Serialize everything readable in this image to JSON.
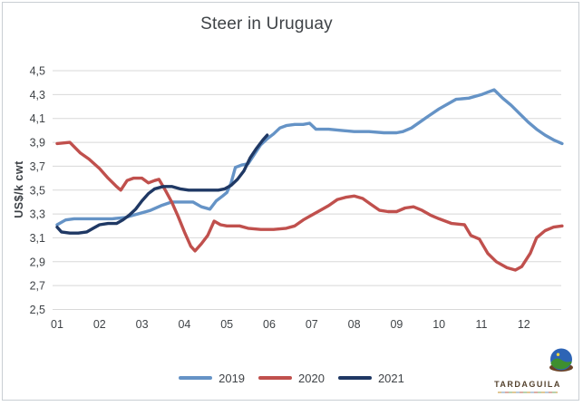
{
  "title": "Steer in Uruguay",
  "logo": {
    "text": "TARDAGUILA"
  },
  "chart_data": {
    "type": "line",
    "title": "Steer in Uruguay",
    "xlabel": "",
    "ylabel": "US$/k cwt",
    "x_unit": "month",
    "x_tick_labels": [
      "01",
      "02",
      "03",
      "04",
      "05",
      "06",
      "07",
      "08",
      "09",
      "10",
      "11",
      "12"
    ],
    "y_tick_labels": [
      "4,5",
      "4,3",
      "4,1",
      "3,9",
      "3,7",
      "3,5",
      "3,3",
      "3,1",
      "2,9",
      "2,7",
      "2,5"
    ],
    "y_tick_values": [
      4.5,
      4.3,
      4.1,
      3.9,
      3.7,
      3.5,
      3.3,
      3.1,
      2.9,
      2.7,
      2.5
    ],
    "ylim": [
      2.5,
      4.5
    ],
    "xlim": [
      1,
      12.9
    ],
    "grid": true,
    "grid_color": "#d8d8d8",
    "legend_position": "bottom",
    "series": [
      {
        "name": "2019",
        "color": "#6593c6",
        "points": [
          [
            1.0,
            3.21
          ],
          [
            1.2,
            3.25
          ],
          [
            1.4,
            3.26
          ],
          [
            1.7,
            3.26
          ],
          [
            2.0,
            3.26
          ],
          [
            2.3,
            3.26
          ],
          [
            2.6,
            3.27
          ],
          [
            2.8,
            3.29
          ],
          [
            3.0,
            3.31
          ],
          [
            3.2,
            3.33
          ],
          [
            3.45,
            3.37
          ],
          [
            3.7,
            3.4
          ],
          [
            4.0,
            3.4
          ],
          [
            4.2,
            3.4
          ],
          [
            4.4,
            3.36
          ],
          [
            4.6,
            3.34
          ],
          [
            4.75,
            3.41
          ],
          [
            4.9,
            3.45
          ],
          [
            5.0,
            3.48
          ],
          [
            5.1,
            3.56
          ],
          [
            5.2,
            3.69
          ],
          [
            5.35,
            3.71
          ],
          [
            5.5,
            3.72
          ],
          [
            5.65,
            3.8
          ],
          [
            5.8,
            3.88
          ],
          [
            5.95,
            3.93
          ],
          [
            6.1,
            3.97
          ],
          [
            6.25,
            4.02
          ],
          [
            6.4,
            4.04
          ],
          [
            6.6,
            4.05
          ],
          [
            6.8,
            4.05
          ],
          [
            6.95,
            4.06
          ],
          [
            7.1,
            4.01
          ],
          [
            7.4,
            4.01
          ],
          [
            7.7,
            4.0
          ],
          [
            8.0,
            3.99
          ],
          [
            8.35,
            3.99
          ],
          [
            8.7,
            3.98
          ],
          [
            9.0,
            3.98
          ],
          [
            9.15,
            3.99
          ],
          [
            9.35,
            4.02
          ],
          [
            9.55,
            4.07
          ],
          [
            9.75,
            4.12
          ],
          [
            10.0,
            4.18
          ],
          [
            10.2,
            4.22
          ],
          [
            10.4,
            4.26
          ],
          [
            10.7,
            4.27
          ],
          [
            11.0,
            4.3
          ],
          [
            11.15,
            4.32
          ],
          [
            11.3,
            4.34
          ],
          [
            11.5,
            4.27
          ],
          [
            11.7,
            4.21
          ],
          [
            11.9,
            4.14
          ],
          [
            12.1,
            4.07
          ],
          [
            12.3,
            4.01
          ],
          [
            12.5,
            3.96
          ],
          [
            12.7,
            3.92
          ],
          [
            12.9,
            3.89
          ]
        ]
      },
      {
        "name": "2020",
        "color": "#c0504d",
        "points": [
          [
            1.0,
            3.89
          ],
          [
            1.3,
            3.9
          ],
          [
            1.55,
            3.81
          ],
          [
            1.75,
            3.76
          ],
          [
            2.0,
            3.68
          ],
          [
            2.2,
            3.6
          ],
          [
            2.4,
            3.53
          ],
          [
            2.5,
            3.5
          ],
          [
            2.65,
            3.58
          ],
          [
            2.8,
            3.6
          ],
          [
            3.0,
            3.6
          ],
          [
            3.15,
            3.56
          ],
          [
            3.3,
            3.58
          ],
          [
            3.4,
            3.59
          ],
          [
            3.55,
            3.5
          ],
          [
            3.7,
            3.4
          ],
          [
            3.85,
            3.28
          ],
          [
            4.0,
            3.15
          ],
          [
            4.15,
            3.03
          ],
          [
            4.25,
            2.99
          ],
          [
            4.4,
            3.05
          ],
          [
            4.55,
            3.12
          ],
          [
            4.7,
            3.24
          ],
          [
            4.85,
            3.21
          ],
          [
            5.0,
            3.2
          ],
          [
            5.3,
            3.2
          ],
          [
            5.5,
            3.18
          ],
          [
            5.8,
            3.17
          ],
          [
            6.1,
            3.17
          ],
          [
            6.4,
            3.18
          ],
          [
            6.6,
            3.2
          ],
          [
            6.8,
            3.25
          ],
          [
            7.0,
            3.29
          ],
          [
            7.2,
            3.33
          ],
          [
            7.4,
            3.37
          ],
          [
            7.6,
            3.42
          ],
          [
            7.8,
            3.44
          ],
          [
            8.0,
            3.45
          ],
          [
            8.2,
            3.43
          ],
          [
            8.4,
            3.38
          ],
          [
            8.6,
            3.33
          ],
          [
            8.8,
            3.32
          ],
          [
            9.0,
            3.32
          ],
          [
            9.2,
            3.35
          ],
          [
            9.4,
            3.36
          ],
          [
            9.6,
            3.33
          ],
          [
            9.8,
            3.29
          ],
          [
            10.0,
            3.26
          ],
          [
            10.3,
            3.22
          ],
          [
            10.6,
            3.21
          ],
          [
            10.75,
            3.12
          ],
          [
            10.95,
            3.09
          ],
          [
            11.15,
            2.97
          ],
          [
            11.35,
            2.9
          ],
          [
            11.6,
            2.85
          ],
          [
            11.8,
            2.83
          ],
          [
            11.95,
            2.86
          ],
          [
            12.15,
            2.97
          ],
          [
            12.3,
            3.1
          ],
          [
            12.5,
            3.16
          ],
          [
            12.7,
            3.19
          ],
          [
            12.9,
            3.2
          ]
        ]
      },
      {
        "name": "2021",
        "color": "#1f3864",
        "points": [
          [
            1.0,
            3.19
          ],
          [
            1.1,
            3.15
          ],
          [
            1.3,
            3.14
          ],
          [
            1.5,
            3.14
          ],
          [
            1.7,
            3.15
          ],
          [
            1.85,
            3.18
          ],
          [
            2.0,
            3.21
          ],
          [
            2.2,
            3.22
          ],
          [
            2.4,
            3.22
          ],
          [
            2.55,
            3.25
          ],
          [
            2.7,
            3.29
          ],
          [
            2.85,
            3.34
          ],
          [
            3.0,
            3.41
          ],
          [
            3.15,
            3.47
          ],
          [
            3.3,
            3.51
          ],
          [
            3.5,
            3.53
          ],
          [
            3.7,
            3.53
          ],
          [
            3.9,
            3.51
          ],
          [
            4.1,
            3.5
          ],
          [
            4.3,
            3.5
          ],
          [
            4.6,
            3.5
          ],
          [
            4.8,
            3.5
          ],
          [
            4.95,
            3.51
          ],
          [
            5.1,
            3.54
          ],
          [
            5.25,
            3.59
          ],
          [
            5.4,
            3.66
          ],
          [
            5.55,
            3.77
          ],
          [
            5.7,
            3.85
          ],
          [
            5.85,
            3.92
          ],
          [
            5.95,
            3.96
          ]
        ]
      }
    ]
  }
}
